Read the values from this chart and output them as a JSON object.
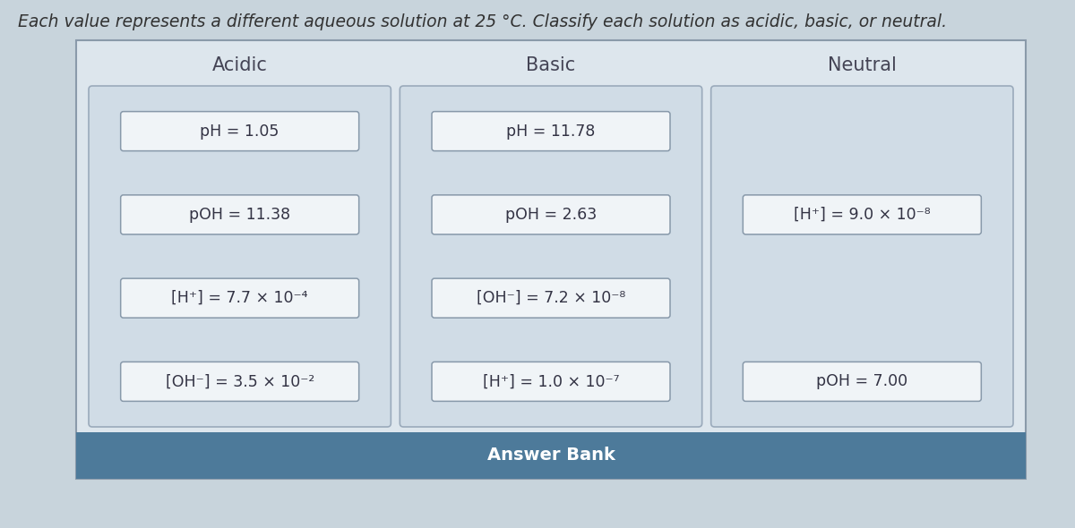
{
  "title": "Each value represents a different aqueous solution at 25 °C. Classify each solution as acidic, basic, or neutral.",
  "title_fontsize": 13.5,
  "title_color": "#333333",
  "background_color": "#c8d4dc",
  "outer_box_facecolor": "#dde6ed",
  "outer_box_edgecolor": "#8a9aaa",
  "col_panel_facecolor": "#d0dce6",
  "col_panel_edgecolor": "#9aaabb",
  "card_facecolor": "#f0f4f7",
  "card_edgecolor": "#8899aa",
  "answer_bank_bg": "#4d7a9a",
  "answer_bank_text": "Answer Bank",
  "answer_bank_text_color": "#ffffff",
  "col_headers": [
    "Acidic",
    "Basic",
    "Neutral"
  ],
  "col_header_fontsize": 15,
  "col_header_color": "#444455",
  "item_fontsize": 12.5,
  "item_color": "#333344",
  "acidic_items": [
    "pH = 1.05",
    "pOH = 11.38",
    "[H⁺] = 7.7 × 10⁻⁴",
    "[OH⁻] = 3.5 × 10⁻²"
  ],
  "basic_items": [
    "pH = 11.78",
    "pOH = 2.63",
    "[OH⁻] = 7.2 × 10⁻⁸",
    "[H⁺] = 1.0 × 10⁻⁷"
  ],
  "neutral_items": [
    "[H⁺] = 9.0 × 10⁻⁸",
    "pOH = 7.00"
  ],
  "neutral_item_rows": [
    1,
    3
  ]
}
